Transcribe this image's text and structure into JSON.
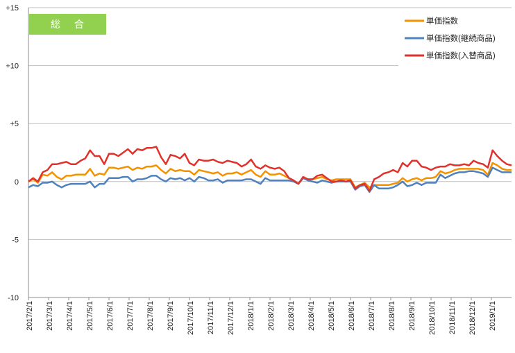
{
  "chart_data": {
    "type": "line",
    "badge": "総 合",
    "ylim": [
      -10,
      15
    ],
    "y_ticks": [
      {
        "value": 15,
        "label": "+15"
      },
      {
        "value": 10,
        "label": "+10"
      },
      {
        "value": 5,
        "label": "+5"
      },
      {
        "value": 0,
        "label": "0"
      },
      {
        "value": -5,
        "label": "-5"
      },
      {
        "value": -10,
        "label": "-10"
      }
    ],
    "x_tick_labels": [
      "2017/2/1",
      "2017/3/1",
      "2017/4/1",
      "2017/5/1",
      "2017/6/1",
      "2017/7/1",
      "2017/8/1",
      "2017/9/1",
      "2017/10/1",
      "2017/11/1",
      "2017/12/1",
      "2018/1/1",
      "2018/2/1",
      "2018/3/1",
      "2018/4/1",
      "2018/5/1",
      "2018/6/1",
      "2018/7/1",
      "2018/8/1",
      "2018/9/1",
      "2018/10/1",
      "2018/11/1",
      "2018/12/1",
      "2019/1/1"
    ],
    "grid": "horizontal",
    "legend_position": "top-right",
    "series": [
      {
        "name": "単価指数",
        "color": "#F39200",
        "values": [
          0.0,
          0.2,
          -0.1,
          0.6,
          0.5,
          0.8,
          0.4,
          0.2,
          0.5,
          0.5,
          0.6,
          0.6,
          0.6,
          1.1,
          0.5,
          0.7,
          0.6,
          1.2,
          1.2,
          1.1,
          1.2,
          1.3,
          1.0,
          1.2,
          1.1,
          1.3,
          1.3,
          1.4,
          1.0,
          0.7,
          1.1,
          0.9,
          1.0,
          0.9,
          0.9,
          0.6,
          1.0,
          0.9,
          0.8,
          0.7,
          0.8,
          0.5,
          0.7,
          0.7,
          0.8,
          0.6,
          0.8,
          1.0,
          0.6,
          0.4,
          0.9,
          0.6,
          0.6,
          0.7,
          0.5,
          0.3,
          0.1,
          -0.2,
          0.3,
          0.2,
          0.2,
          0.3,
          0.4,
          0.2,
          0.1,
          0.2,
          0.2,
          0.2,
          0.2,
          -0.5,
          -0.3,
          -0.1,
          -0.5,
          -0.3,
          -0.3,
          -0.3,
          -0.3,
          -0.2,
          -0.1,
          0.3,
          0.0,
          0.2,
          0.3,
          0.1,
          0.3,
          0.3,
          0.4,
          0.9,
          0.7,
          0.8,
          1.0,
          1.1,
          1.1,
          1.1,
          1.1,
          1.1,
          1.0,
          0.6,
          1.6,
          1.4,
          1.1,
          1.0,
          1.0
        ]
      },
      {
        "name": "単価指数(継続商品)",
        "color": "#4F81BD",
        "values": [
          -0.5,
          -0.3,
          -0.4,
          -0.1,
          -0.1,
          0.0,
          -0.3,
          -0.5,
          -0.3,
          -0.2,
          -0.2,
          -0.2,
          -0.2,
          0.0,
          -0.5,
          -0.2,
          -0.2,
          0.3,
          0.3,
          0.3,
          0.4,
          0.4,
          0.0,
          0.2,
          0.2,
          0.3,
          0.5,
          0.5,
          0.2,
          0.0,
          0.3,
          0.2,
          0.3,
          0.1,
          0.3,
          0.0,
          0.4,
          0.3,
          0.1,
          0.1,
          0.2,
          -0.1,
          0.1,
          0.1,
          0.1,
          0.1,
          0.2,
          0.2,
          0.0,
          -0.2,
          0.3,
          0.1,
          0.1,
          0.1,
          0.1,
          0.1,
          0.0,
          -0.2,
          0.3,
          0.1,
          0.0,
          -0.1,
          0.1,
          0.0,
          -0.1,
          0.0,
          0.0,
          0.0,
          0.0,
          -0.7,
          -0.4,
          -0.3,
          -0.9,
          -0.3,
          -0.6,
          -0.6,
          -0.6,
          -0.5,
          -0.3,
          0.0,
          -0.4,
          -0.3,
          -0.1,
          -0.3,
          -0.1,
          -0.1,
          -0.1,
          0.6,
          0.3,
          0.5,
          0.7,
          0.8,
          0.8,
          0.9,
          0.9,
          0.8,
          0.7,
          0.4,
          1.2,
          1.0,
          0.8,
          0.8,
          0.8
        ]
      },
      {
        "name": "単価指数(入替商品)",
        "color": "#E0322B",
        "values": [
          0.0,
          0.3,
          0.0,
          0.8,
          1.0,
          1.5,
          1.5,
          1.6,
          1.7,
          1.5,
          1.5,
          1.8,
          2.0,
          2.7,
          2.2,
          2.2,
          1.5,
          2.4,
          2.4,
          2.2,
          2.5,
          2.8,
          2.4,
          2.8,
          2.7,
          2.9,
          2.9,
          3.0,
          2.1,
          1.5,
          2.3,
          2.2,
          2.0,
          2.4,
          1.6,
          1.4,
          1.9,
          1.8,
          1.8,
          1.9,
          1.7,
          1.6,
          1.8,
          1.7,
          1.6,
          1.3,
          1.5,
          1.9,
          1.3,
          1.1,
          1.4,
          1.2,
          1.1,
          1.2,
          0.9,
          0.3,
          0.1,
          -0.2,
          0.4,
          0.2,
          0.2,
          0.5,
          0.6,
          0.3,
          0.0,
          0.0,
          0.1,
          0.0,
          0.1,
          -0.6,
          -0.3,
          -0.2,
          -0.8,
          0.2,
          0.4,
          0.7,
          0.8,
          1.0,
          0.8,
          1.6,
          1.3,
          1.8,
          1.8,
          1.3,
          1.2,
          1.0,
          1.2,
          1.3,
          1.3,
          1.5,
          1.4,
          1.4,
          1.5,
          1.4,
          1.8,
          1.6,
          1.5,
          1.2,
          2.7,
          2.2,
          1.8,
          1.5,
          1.4
        ]
      }
    ]
  }
}
